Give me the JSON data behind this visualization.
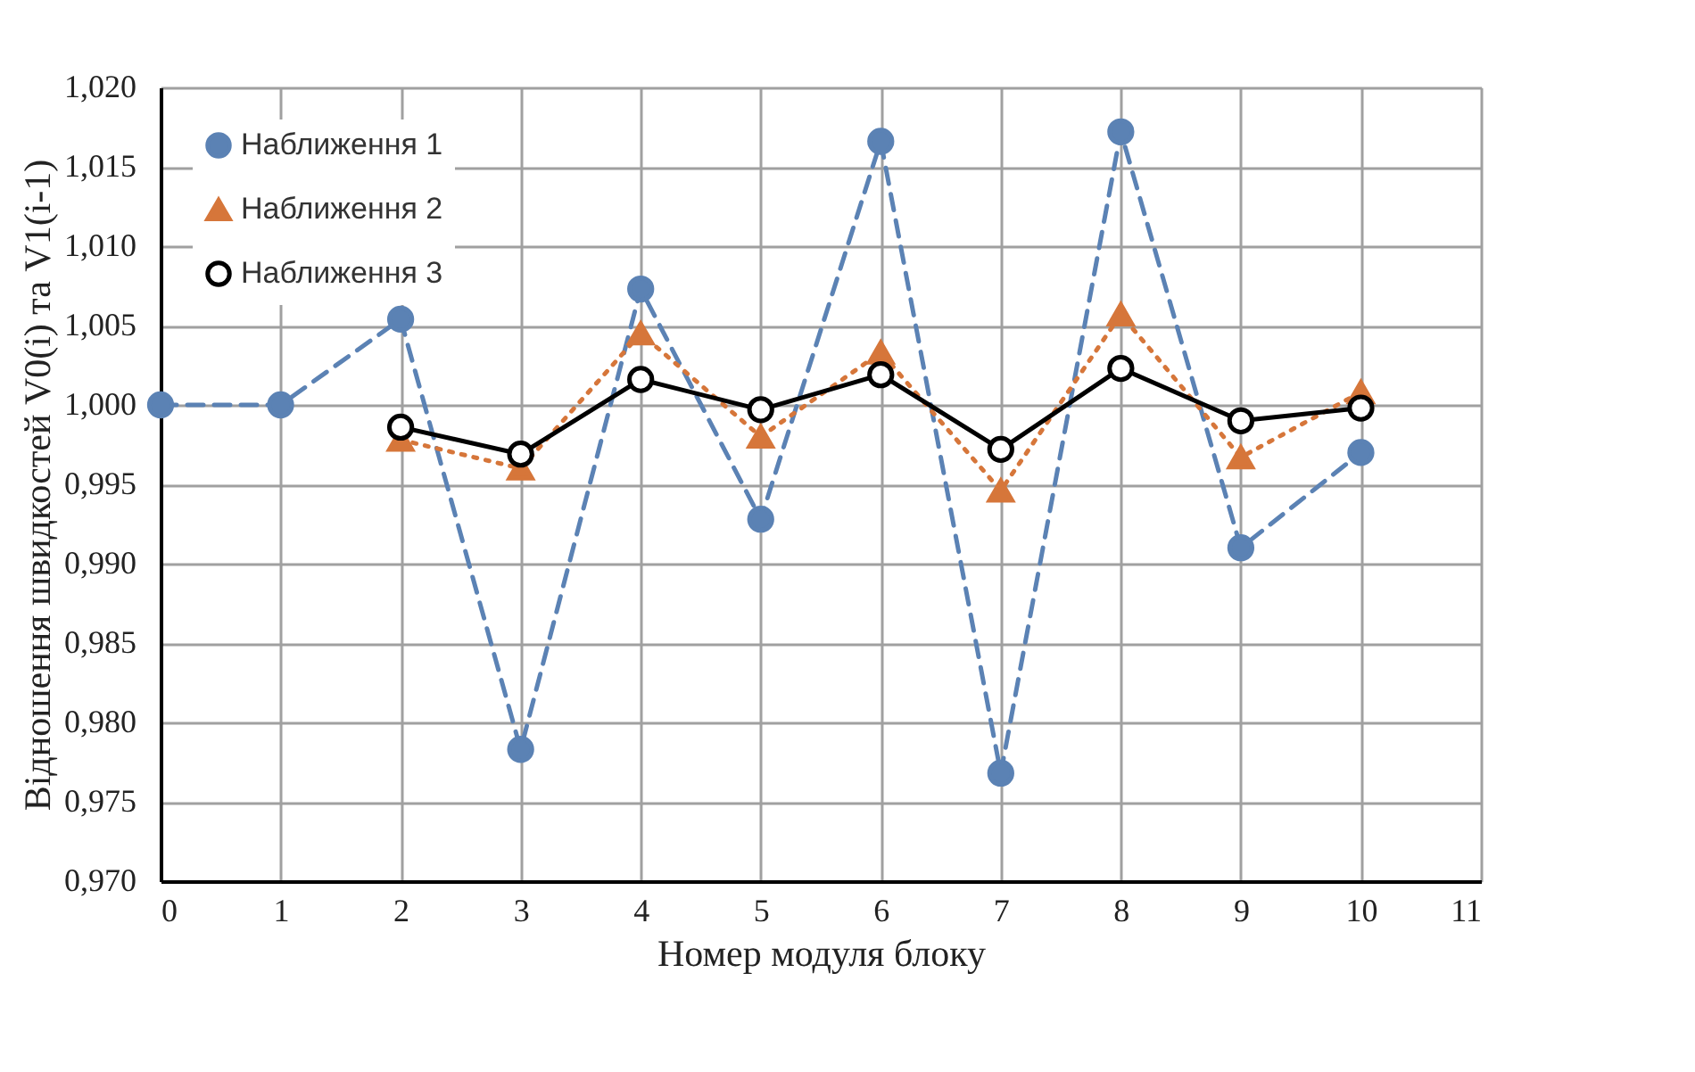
{
  "chart_data": {
    "type": "line",
    "xlabel": "Номер модуля блоку",
    "ylabel": "Відношення швидкостей   V0(i) та V1(i-1)",
    "x": [
      0,
      1,
      2,
      3,
      4,
      5,
      6,
      7,
      8,
      9,
      10
    ],
    "series": [
      {
        "name": "Наближення 1",
        "color": "#5b82b4",
        "marker": "circle",
        "line_style": "dashed",
        "values": [
          1.0,
          1.0,
          1.0054,
          0.9783,
          1.0073,
          0.9928,
          1.0166,
          0.9768,
          1.0172,
          0.991,
          0.997
        ]
      },
      {
        "name": "Наближення 2",
        "color": "#d6763a",
        "marker": "triangle",
        "line_style": "dotted",
        "values": [
          null,
          null,
          0.9978,
          0.996,
          1.0045,
          0.998,
          1.0033,
          0.9946,
          1.0057,
          0.9967,
          1.0008
        ]
      },
      {
        "name": "Наближення 3",
        "color": "#000000",
        "marker": "circle",
        "line_style": "solid",
        "values": [
          null,
          null,
          0.9986,
          0.9969,
          1.0016,
          0.9997,
          1.0019,
          0.9972,
          1.0023,
          0.999,
          0.9998
        ]
      }
    ],
    "xlim": [
      0,
      11
    ],
    "xticks": [
      0,
      1,
      2,
      3,
      4,
      5,
      6,
      7,
      8,
      9,
      10,
      11
    ],
    "ylim": [
      0.97,
      1.02
    ],
    "yticks": [
      {
        "value": 0.97,
        "label": "0,970"
      },
      {
        "value": 0.975,
        "label": "0,975"
      },
      {
        "value": 0.98,
        "label": "0,980"
      },
      {
        "value": 0.985,
        "label": "0,985"
      },
      {
        "value": 0.99,
        "label": "0,990"
      },
      {
        "value": 0.995,
        "label": "0,995"
      },
      {
        "value": 1.0,
        "label": "1,000"
      },
      {
        "value": 1.005,
        "label": "1,005"
      },
      {
        "value": 1.01,
        "label": "1,010"
      },
      {
        "value": 1.015,
        "label": "1,015"
      },
      {
        "value": 1.02,
        "label": "1,020"
      }
    ],
    "grid": true,
    "legend": "top left"
  }
}
